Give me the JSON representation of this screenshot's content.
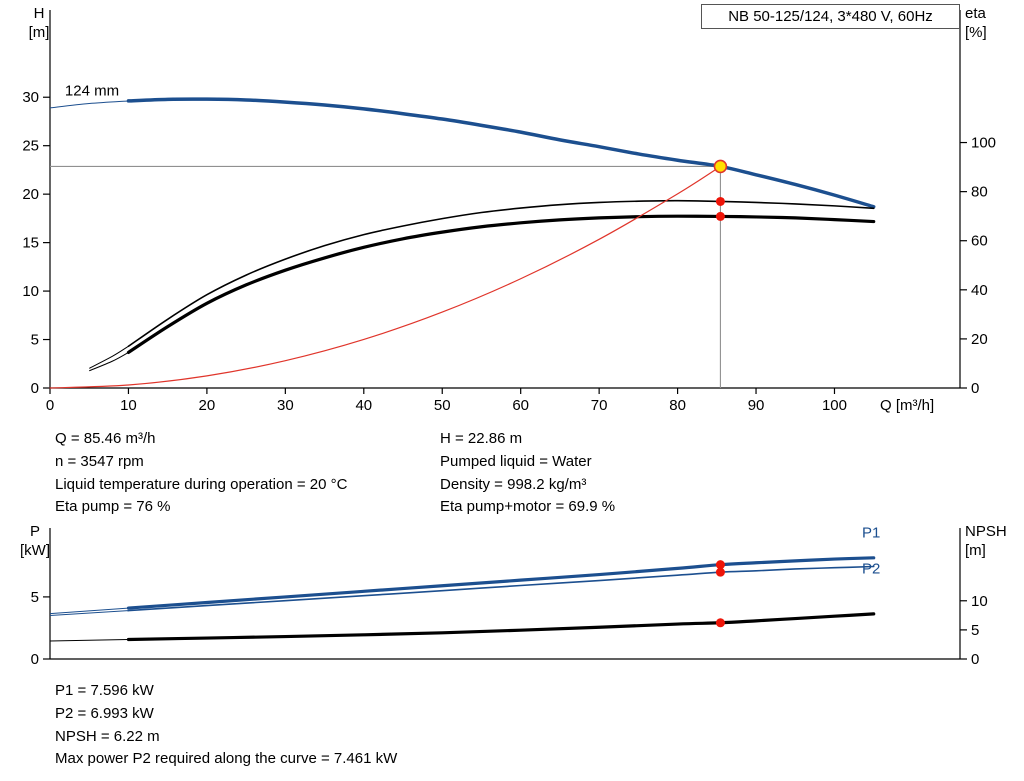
{
  "labels": {
    "h": "H",
    "h_unit": "[m]",
    "eta": "eta",
    "eta_unit": "[%]",
    "q": "Q [m³/h]",
    "p": "P",
    "p_unit": "[kW]",
    "npsh": "NPSH",
    "npsh_unit": "[m]"
  },
  "info": {
    "q": "Q = 85.46 m³/h",
    "n": "n = 3547 rpm",
    "temp": "Liquid temperature during operation = 20 °C",
    "eta_pump": "Eta pump = 76 %",
    "h": "H = 22.86 m",
    "liquid": "Pumped liquid = Water",
    "density": "Density = 998.2 kg/m³",
    "eta_total": "Eta pump+motor = 69.9 %",
    "p1": "P1 = 7.596 kW",
    "p2": "P2 = 6.993 kW",
    "npsh": "NPSH = 6.22 m",
    "max_p2": "Max power P2 required along the curve = 7.461 kW"
  },
  "colors": {
    "curve_blue": "#1c4f8f",
    "curve_black": "#000000",
    "curve_red": "#e0352b",
    "marker_red": "#ee1509",
    "duty_point_fill": "#ffe000",
    "guide_gray": "#909090"
  },
  "chart_data": [
    {
      "id": "hq_eta_chart",
      "type": "line",
      "title": "NB 50-125/124, 3*480 V, 60Hz",
      "impeller_label": "124 mm",
      "x_axis": {
        "label": "Q [m³/h]",
        "min": 0,
        "max": 116,
        "ticks": [
          0,
          10,
          20,
          30,
          40,
          50,
          60,
          70,
          80,
          90,
          100
        ]
      },
      "left_axis": {
        "label": "H [m]",
        "min": 0,
        "max": 39,
        "ticks": [
          0,
          5,
          10,
          15,
          20,
          25,
          30
        ]
      },
      "right_axis": {
        "label": "eta [%]",
        "min": 0,
        "max": 154,
        "ticks": [
          0,
          20,
          40,
          60,
          80,
          100
        ]
      },
      "series": [
        {
          "name": "head_curve",
          "axis": "left",
          "color": "#1c4f8f",
          "width": 3.5,
          "split": 10,
          "points": [
            [
              0,
              28.9
            ],
            [
              5,
              29.35
            ],
            [
              10,
              29.62
            ],
            [
              15,
              29.78
            ],
            [
              20,
              29.8
            ],
            [
              25,
              29.72
            ],
            [
              30,
              29.5
            ],
            [
              35,
              29.2
            ],
            [
              40,
              28.8
            ],
            [
              45,
              28.3
            ],
            [
              50,
              27.75
            ],
            [
              55,
              27.1
            ],
            [
              60,
              26.4
            ],
            [
              65,
              25.6
            ],
            [
              70,
              24.9
            ],
            [
              75,
              24.15
            ],
            [
              80,
              23.5
            ],
            [
              85.46,
              22.86
            ],
            [
              90,
              22.0
            ],
            [
              95,
              21.0
            ],
            [
              100,
              19.9
            ],
            [
              105,
              18.7
            ]
          ]
        },
        {
          "name": "eta_pump_curve",
          "axis": "right",
          "color": "#000000",
          "width": 1.6,
          "split": 10,
          "points": [
            [
              5,
              8
            ],
            [
              8,
              13
            ],
            [
              10,
              17
            ],
            [
              15,
              28
            ],
            [
              20,
              38
            ],
            [
              25,
              46
            ],
            [
              30,
              52.5
            ],
            [
              35,
              58
            ],
            [
              40,
              62.5
            ],
            [
              45,
              66
            ],
            [
              50,
              69
            ],
            [
              55,
              71.5
            ],
            [
              60,
              73.3
            ],
            [
              65,
              74.7
            ],
            [
              70,
              75.6
            ],
            [
              75,
              76.1
            ],
            [
              80,
              76.3
            ],
            [
              85.46,
              76
            ],
            [
              90,
              75.6
            ],
            [
              95,
              75
            ],
            [
              100,
              74.2
            ],
            [
              105,
              73.2
            ]
          ]
        },
        {
          "name": "eta_pump_motor_curve",
          "axis": "right",
          "color": "#000000",
          "width": 3.2,
          "split": 10,
          "points": [
            [
              5,
              7
            ],
            [
              8,
              11
            ],
            [
              10,
              14.5
            ],
            [
              15,
              25
            ],
            [
              20,
              34.5
            ],
            [
              25,
              42
            ],
            [
              30,
              48
            ],
            [
              35,
              53
            ],
            [
              40,
              57.3
            ],
            [
              45,
              60.8
            ],
            [
              50,
              63.5
            ],
            [
              55,
              65.7
            ],
            [
              60,
              67.3
            ],
            [
              65,
              68.5
            ],
            [
              70,
              69.3
            ],
            [
              75,
              69.8
            ],
            [
              80,
              70
            ],
            [
              85.46,
              69.9
            ],
            [
              90,
              69.7
            ],
            [
              95,
              69.3
            ],
            [
              100,
              68.6
            ],
            [
              105,
              67.8
            ]
          ]
        },
        {
          "name": "system_curve",
          "axis": "left",
          "color": "#e0352b",
          "width": 1.2,
          "points": [
            [
              0,
              0
            ],
            [
              10,
              0.31
            ],
            [
              20,
              1.25
            ],
            [
              30,
              2.82
            ],
            [
              40,
              5.01
            ],
            [
              50,
              7.83
            ],
            [
              60,
              11.27
            ],
            [
              70,
              15.34
            ],
            [
              80,
              20.03
            ],
            [
              85.46,
              22.86
            ]
          ]
        }
      ],
      "guides": [
        {
          "type": "h",
          "value": 22.86,
          "axis": "left",
          "q1": 0,
          "q2": 85.46
        },
        {
          "type": "v",
          "q": 85.46,
          "axis": "left",
          "v1": 0,
          "v2": 22.86
        }
      ],
      "markers": [
        {
          "name": "duty-point",
          "q": 85.46,
          "value": 22.86,
          "axis": "left",
          "r": 6,
          "fill": "#ffe000",
          "stroke": "#e0352b"
        },
        {
          "name": "eta-pump-point",
          "q": 85.46,
          "value": 76,
          "axis": "right",
          "r": 4.5,
          "fill": "#ee1509"
        },
        {
          "name": "eta-pump-motor-point",
          "q": 85.46,
          "value": 69.9,
          "axis": "right",
          "r": 4.5,
          "fill": "#ee1509"
        }
      ],
      "annotations": [
        {
          "text": "124 mm",
          "q": 1.9,
          "value": 30.2,
          "axis": "left",
          "color": "#000000",
          "anchor": "start"
        }
      ]
    },
    {
      "id": "power_npsh_chart",
      "type": "line",
      "x_axis": {
        "label": "",
        "min": 0,
        "max": 116,
        "ticks": []
      },
      "left_axis": {
        "label": "P [kW]",
        "min": 0,
        "max": 10.55,
        "ticks": [
          0,
          5
        ]
      },
      "right_axis": {
        "label": "NPSH [m]",
        "min": 0,
        "max": 22.5,
        "ticks": [
          0,
          5,
          10
        ]
      },
      "series": [
        {
          "name": "p1_curve",
          "axis": "left",
          "color": "#1c4f8f",
          "width": 3.2,
          "split": 10,
          "points": [
            [
              0,
              3.65
            ],
            [
              10,
              4.1
            ],
            [
              20,
              4.55
            ],
            [
              30,
              5.0
            ],
            [
              40,
              5.45
            ],
            [
              50,
              5.9
            ],
            [
              60,
              6.35
            ],
            [
              70,
              6.8
            ],
            [
              80,
              7.3
            ],
            [
              85.46,
              7.596
            ],
            [
              90,
              7.75
            ],
            [
              95,
              7.9
            ],
            [
              100,
              8.05
            ],
            [
              105,
              8.15
            ]
          ]
        },
        {
          "name": "p2_curve",
          "axis": "left",
          "color": "#1c4f8f",
          "width": 1.6,
          "split": 10,
          "points": [
            [
              0,
              3.5
            ],
            [
              10,
              3.9
            ],
            [
              20,
              4.3
            ],
            [
              30,
              4.7
            ],
            [
              40,
              5.1
            ],
            [
              50,
              5.5
            ],
            [
              60,
              5.92
            ],
            [
              70,
              6.32
            ],
            [
              80,
              6.75
            ],
            [
              85.46,
              6.993
            ],
            [
              90,
              7.1
            ],
            [
              95,
              7.25
            ],
            [
              100,
              7.35
            ],
            [
              105,
              7.45
            ]
          ]
        },
        {
          "name": "npsh_curve",
          "axis": "right",
          "color": "#000000",
          "width": 3.2,
          "split": 10,
          "points": [
            [
              0,
              3.1
            ],
            [
              10,
              3.35
            ],
            [
              20,
              3.6
            ],
            [
              30,
              3.85
            ],
            [
              40,
              4.15
            ],
            [
              50,
              4.5
            ],
            [
              60,
              4.95
            ],
            [
              70,
              5.45
            ],
            [
              80,
              6.0
            ],
            [
              85.46,
              6.22
            ],
            [
              90,
              6.55
            ],
            [
              95,
              6.95
            ],
            [
              100,
              7.35
            ],
            [
              105,
              7.75
            ]
          ]
        }
      ],
      "guides": [],
      "markers": [
        {
          "name": "p1-point",
          "q": 85.46,
          "value": 7.596,
          "axis": "left",
          "r": 4.5,
          "fill": "#ee1509"
        },
        {
          "name": "p2-point",
          "q": 85.46,
          "value": 6.993,
          "axis": "left",
          "r": 4.5,
          "fill": "#ee1509"
        },
        {
          "name": "npsh-point",
          "q": 85.46,
          "value": 6.22,
          "axis": "right",
          "r": 4.5,
          "fill": "#ee1509"
        }
      ],
      "annotations": [
        {
          "text": "P1",
          "q": 103.5,
          "value": 9.8,
          "axis": "left",
          "color": "#1c4f8f",
          "anchor": "start"
        },
        {
          "text": "P2",
          "q": 103.5,
          "value": 6.9,
          "axis": "left",
          "color": "#1c4f8f",
          "anchor": "start"
        }
      ]
    }
  ]
}
